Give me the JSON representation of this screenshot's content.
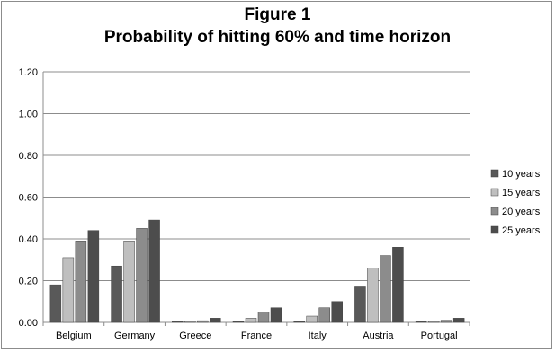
{
  "chart_data": {
    "type": "bar",
    "title": "Figure 1",
    "subtitle": "Probability of hitting 60% and time horizon",
    "xlabel": "",
    "ylabel": "",
    "ylim": [
      0,
      1.2
    ],
    "yticks": [
      "0.00",
      "0.20",
      "0.40",
      "0.60",
      "0.80",
      "1.00",
      "1.20"
    ],
    "ytick_values": [
      0,
      0.2,
      0.4,
      0.6,
      0.8,
      1.0,
      1.2
    ],
    "grid": true,
    "legend_position": "right",
    "categories": [
      "Belgium",
      "Germany",
      "Greece",
      "France",
      "Italy",
      "Austria",
      "Portugal"
    ],
    "series": [
      {
        "name": "10 years",
        "color": "#595959",
        "values": [
          0.18,
          0.27,
          0.003,
          0.003,
          0.003,
          0.17,
          0.003
        ]
      },
      {
        "name": "15 years",
        "color": "#bfbfbf",
        "values": [
          0.31,
          0.39,
          0.003,
          0.02,
          0.03,
          0.26,
          0.003
        ]
      },
      {
        "name": "20 years",
        "color": "#8c8c8c",
        "values": [
          0.39,
          0.45,
          0.008,
          0.05,
          0.07,
          0.32,
          0.01
        ]
      },
      {
        "name": "25 years",
        "color": "#4d4d4d",
        "values": [
          0.44,
          0.49,
          0.02,
          0.07,
          0.1,
          0.36,
          0.02
        ]
      }
    ]
  }
}
